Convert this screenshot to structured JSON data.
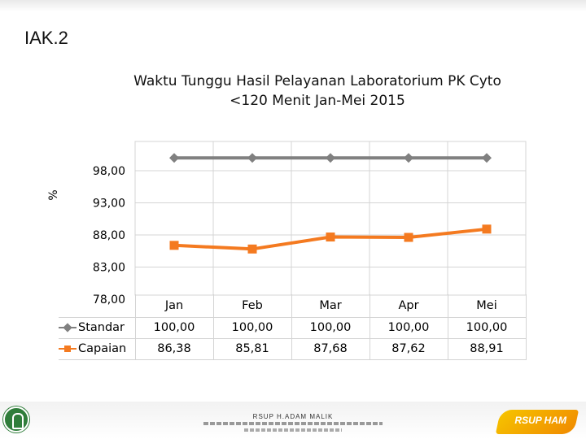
{
  "slide": {
    "code": "IAK.2"
  },
  "footer": {
    "org_name": "RSUP H.ADAM MALIK",
    "brand_text": "RSUP HAM"
  },
  "chart_data": {
    "type": "line",
    "title_line1": "Waktu Tunggu Hasil Pelayanan Laboratorium PK Cyto",
    "title_line2": "<120 Menit Jan-Mei 2015",
    "ylabel": "%",
    "xlabel": "",
    "categories": [
      "Jan",
      "Feb",
      "Mar",
      "Apr",
      "Mei"
    ],
    "y_ticks": [
      "98,00",
      "93,00",
      "88,00",
      "83,00",
      "78,00"
    ],
    "ylim": [
      78,
      98
    ],
    "grid": true,
    "legend_placement": "table-below",
    "series": [
      {
        "name": "Standar",
        "values": [
          100.0,
          100.0,
          100.0,
          100.0,
          100.0
        ],
        "labels": [
          "100,00",
          "100,00",
          "100,00",
          "100,00",
          "100,00"
        ],
        "color": "#808080",
        "marker": "diamond"
      },
      {
        "name": "Capaian",
        "values": [
          86.38,
          85.81,
          87.68,
          87.62,
          88.91
        ],
        "labels": [
          "86,38",
          "85,81",
          "87,68",
          "87,62",
          "88,91"
        ],
        "color": "#f47a20",
        "marker": "square"
      }
    ]
  }
}
